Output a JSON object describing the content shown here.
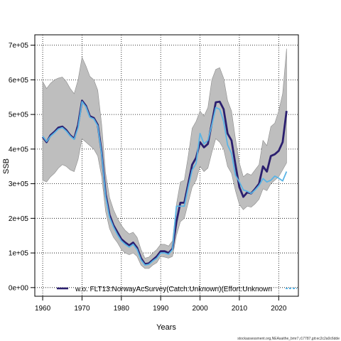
{
  "chart_data": {
    "type": "line",
    "xlabel": "Years",
    "ylabel": "SSB",
    "xlim": [
      1958,
      2025
    ],
    "ylim": [
      -25000,
      730000
    ],
    "x_ticks": [
      1960,
      1970,
      1980,
      1990,
      2000,
      2010,
      2020
    ],
    "y_ticks": [
      0,
      100000,
      200000,
      300000,
      400000,
      500000,
      600000,
      700000
    ],
    "y_tick_labels": [
      "0e+00",
      "1e+05",
      "2e+05",
      "3e+05",
      "4e+05",
      "5e+05",
      "6e+05",
      "7e+05"
    ],
    "grid": true,
    "legend_position": "bottom",
    "colors": {
      "main": "#2b1f6f",
      "variant": "#5ab4e5",
      "band": "#bebebe",
      "band_edge": "#8c8c8c"
    },
    "years": [
      1960,
      1961,
      1962,
      1963,
      1964,
      1965,
      1966,
      1967,
      1968,
      1969,
      1970,
      1971,
      1972,
      1973,
      1974,
      1975,
      1976,
      1977,
      1978,
      1979,
      1980,
      1981,
      1982,
      1983,
      1984,
      1985,
      1986,
      1987,
      1988,
      1989,
      1990,
      1991,
      1992,
      1993,
      1994,
      1995,
      1996,
      1997,
      1998,
      1999,
      2000,
      2001,
      2002,
      2003,
      2004,
      2005,
      2006,
      2007,
      2008,
      2009,
      2010,
      2011,
      2012,
      2013,
      2014,
      2015,
      2016,
      2017,
      2018,
      2019,
      2020,
      2021,
      2022
    ],
    "series": [
      {
        "name": "w.o. FLT13:NorwayAcSurvey(Catch:Unknown)(Effort:Unknown",
        "role": "main",
        "values": [
          435000,
          420000,
          440000,
          450000,
          462000,
          465000,
          455000,
          440000,
          430000,
          470000,
          540000,
          525000,
          495000,
          490000,
          470000,
          390000,
          270000,
          210000,
          180000,
          160000,
          140000,
          130000,
          122000,
          130000,
          115000,
          85000,
          68000,
          70000,
          80000,
          90000,
          105000,
          105000,
          100000,
          112000,
          190000,
          245000,
          245000,
          300000,
          355000,
          375000,
          420000,
          405000,
          415000,
          475000,
          535000,
          537000,
          515000,
          445000,
          425000,
          355000,
          290000,
          262000,
          275000,
          272000,
          285000,
          300000,
          350000,
          335000,
          380000,
          385000,
          395000,
          420000,
          510000
        ],
        "lower": [
          310000,
          305000,
          320000,
          330000,
          345000,
          355000,
          350000,
          340000,
          335000,
          370000,
          430000,
          420000,
          410000,
          400000,
          380000,
          320000,
          220000,
          170000,
          145000,
          130000,
          110000,
          100000,
          95000,
          100000,
          90000,
          65000,
          55000,
          55000,
          65000,
          72000,
          90000,
          88000,
          85000,
          90000,
          150000,
          190000,
          200000,
          245000,
          290000,
          310000,
          350000,
          335000,
          345000,
          390000,
          430000,
          420000,
          400000,
          350000,
          330000,
          280000,
          240000,
          225000,
          235000,
          232000,
          242000,
          255000,
          285000,
          280000,
          300000,
          310000,
          320000,
          340000,
          360000
        ],
        "upper": [
          595000,
          575000,
          590000,
          600000,
          605000,
          608000,
          595000,
          575000,
          560000,
          600000,
          665000,
          640000,
          610000,
          600000,
          570000,
          470000,
          330000,
          260000,
          225000,
          200000,
          180000,
          165000,
          155000,
          160000,
          145000,
          110000,
          85000,
          88000,
          100000,
          110000,
          125000,
          125000,
          120000,
          135000,
          240000,
          305000,
          310000,
          380000,
          460000,
          480000,
          510000,
          495000,
          520000,
          600000,
          630000,
          635000,
          605000,
          540000,
          510000,
          430000,
          360000,
          320000,
          330000,
          325000,
          340000,
          355000,
          425000,
          410000,
          465000,
          475000,
          510000,
          560000,
          690000
        ]
      },
      {
        "name": "",
        "role": "variant",
        "values": [
          437000,
          422000,
          437000,
          447000,
          458000,
          462000,
          452000,
          438000,
          428000,
          462000,
          537000,
          522000,
          492000,
          487000,
          467000,
          385000,
          263000,
          203000,
          175000,
          153000,
          135000,
          125000,
          117000,
          125000,
          110000,
          80000,
          65000,
          67000,
          77000,
          85000,
          100000,
          100000,
          96000,
          110000,
          235000,
          235000,
          235000,
          290000,
          340000,
          358000,
          445000,
          415000,
          425000,
          470000,
          520000,
          515000,
          480000,
          412000,
          388000,
          325000,
          305000,
          282000,
          278000,
          272000,
          282000,
          295000,
          315000,
          305000,
          310000,
          322000,
          316000,
          308000,
          335000
        ]
      }
    ]
  },
  "footer": "stockassessment.org,NEAsaithe_bmr7,r17787,git:ec2c2a0c6dde"
}
